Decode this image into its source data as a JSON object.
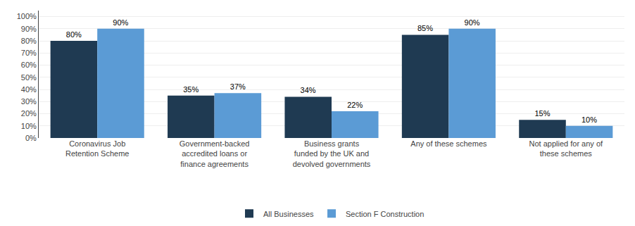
{
  "chart_data": {
    "type": "bar",
    "categories": [
      "Coronavirus Job\nRetention Scheme",
      "Government-backed\naccredited loans or\nfinance agreements",
      "Business grants\nfunded by the UK and\ndevolved governments",
      "Any of these schemes",
      "Not applied for any of\nthese schemes"
    ],
    "series": [
      {
        "name": "All Businesses",
        "color": "#1f3a52",
        "values": [
          80,
          35,
          34,
          85,
          15
        ],
        "value_labels": [
          "80%",
          "35%",
          "34%",
          "85%",
          "15%"
        ]
      },
      {
        "name": "Section F Construction",
        "color": "#5b9bd5",
        "values": [
          90,
          37,
          22,
          90,
          10
        ],
        "value_labels": [
          "90%",
          "37%",
          "22%",
          "90%",
          "10%"
        ]
      }
    ],
    "ylim": [
      0,
      105
    ],
    "yticks": [
      {
        "value": 0,
        "label": "0%"
      },
      {
        "value": 10,
        "label": "10%"
      },
      {
        "value": 20,
        "label": "20%"
      },
      {
        "value": 30,
        "label": "30%"
      },
      {
        "value": 40,
        "label": "40%"
      },
      {
        "value": 50,
        "label": "50%"
      },
      {
        "value": 60,
        "label": "60%"
      },
      {
        "value": 70,
        "label": "70%"
      },
      {
        "value": 80,
        "label": "80%"
      },
      {
        "value": 90,
        "label": "90%"
      },
      {
        "value": 100,
        "label": "100%"
      }
    ],
    "grid": true,
    "legend": "bottom",
    "data_labels": true
  }
}
